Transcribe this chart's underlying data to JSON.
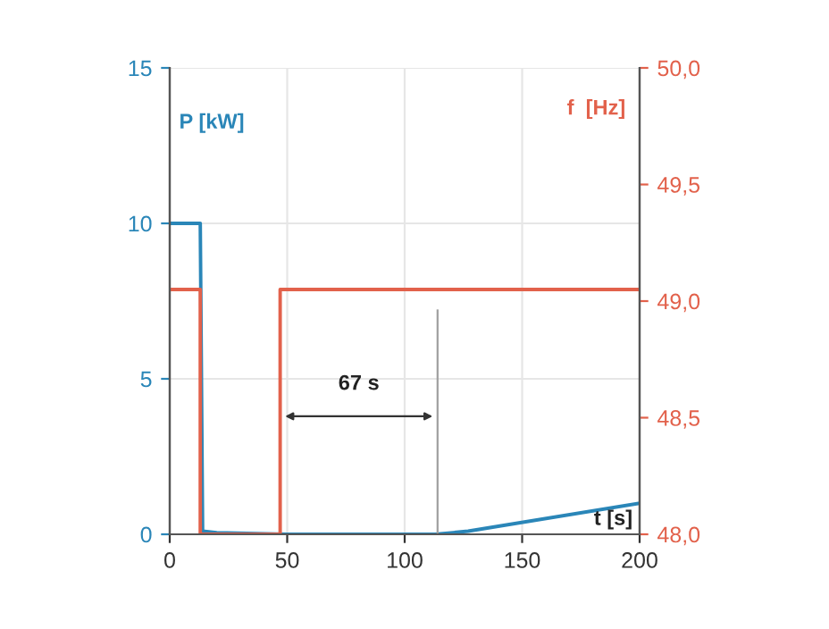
{
  "chart_data": {
    "type": "line",
    "xlabel": "t [s]",
    "ylabel": "P [kW]",
    "y2label": "f  [Hz]",
    "series": [
      {
        "name": null,
        "color": "#2a86b8",
        "x": [
          0,
          13,
          14,
          20,
          50,
          100,
          113,
          127,
          200
        ],
        "values": [
          10,
          10,
          0.1,
          0.05,
          0,
          0,
          0,
          0.1,
          1.0
        ]
      },
      {
        "name": null,
        "color": "#e2614b",
        "axis": "y2",
        "x": [
          0,
          13,
          13,
          47,
          47,
          200
        ],
        "values": [
          49.05,
          49.05,
          48.0,
          48.0,
          49.05,
          49.05
        ]
      }
    ],
    "xlim": [
      0,
      200
    ],
    "xticks": [
      0,
      50,
      100,
      150,
      200
    ],
    "ylim": [
      0,
      15
    ],
    "yticks": [
      0,
      5,
      10,
      15
    ],
    "y2lim": [
      48,
      50
    ],
    "y2ticks": [
      {
        "value": 48,
        "label": "48,0"
      },
      {
        "value": 48.5,
        "label": "48,5"
      },
      {
        "value": 49,
        "label": "49,0"
      },
      {
        "value": 49.5,
        "label": "49,5"
      },
      {
        "value": 50,
        "label": "50,0"
      }
    ],
    "ref_lines": [
      {
        "axis": "x",
        "value": 114,
        "label": null,
        "color": "#a0a0a0"
      }
    ],
    "annotations": [
      "67 s"
    ],
    "grid": true,
    "legend": false
  }
}
